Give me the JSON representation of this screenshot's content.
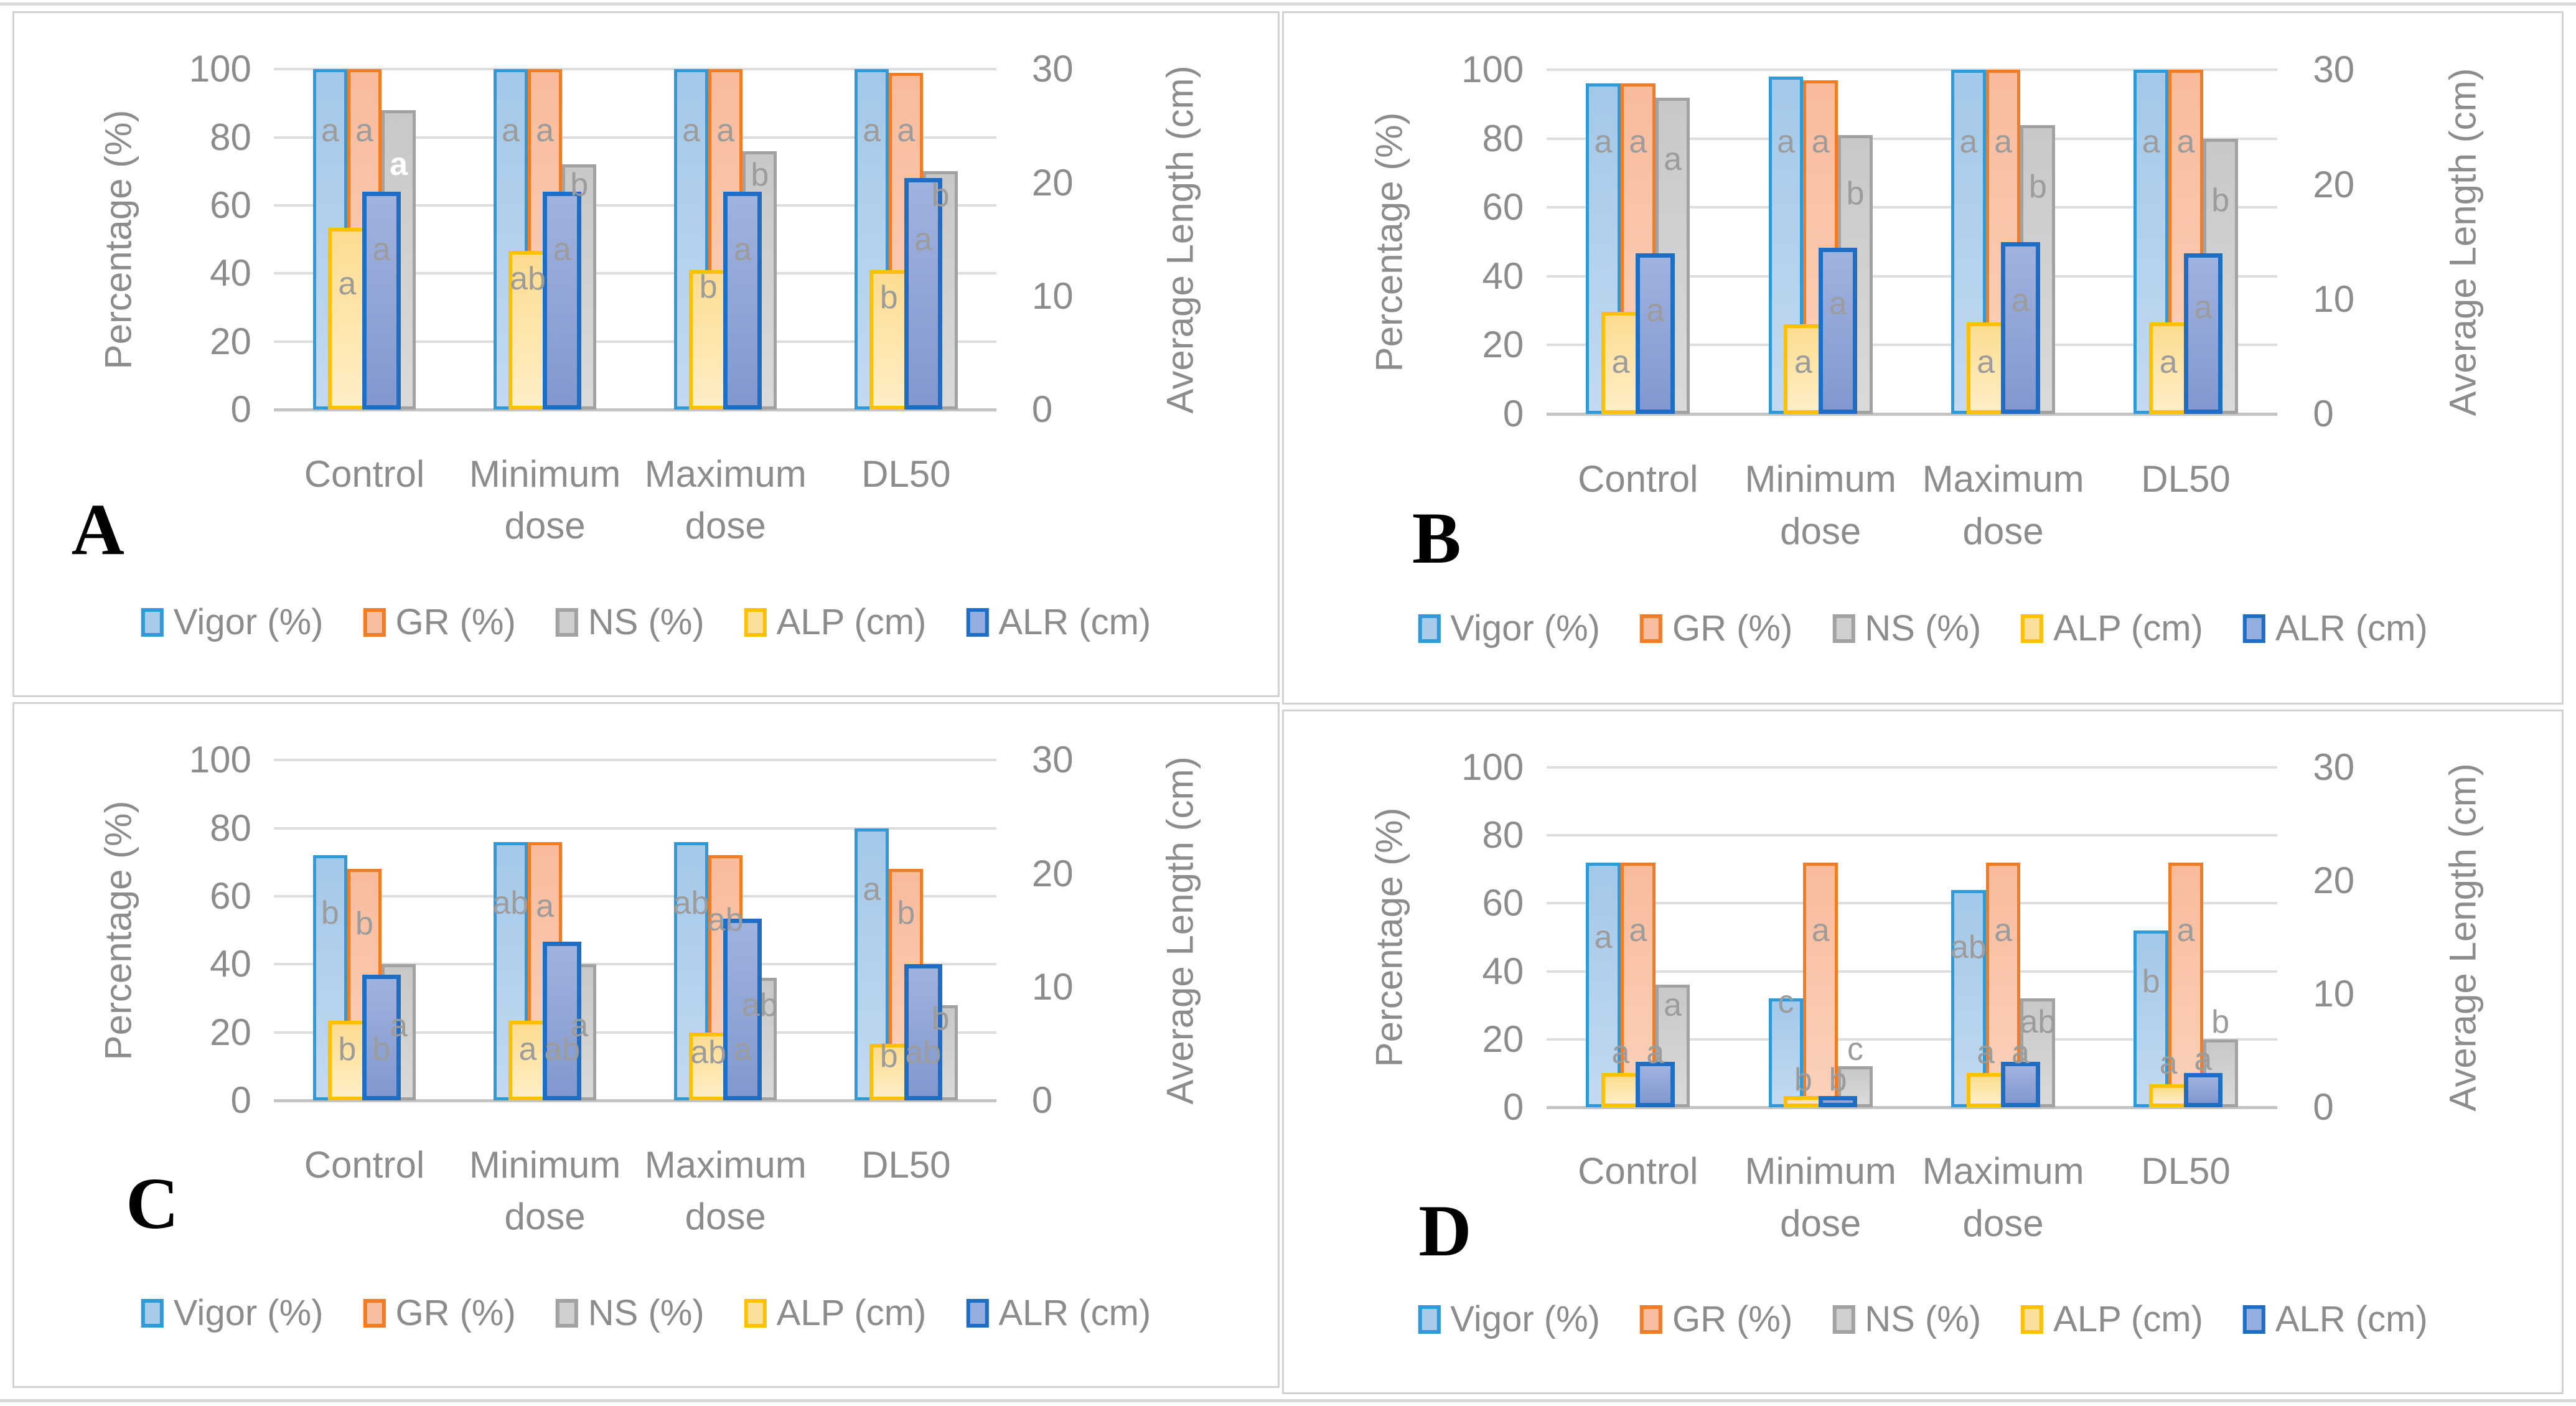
{
  "figure": {
    "panel_letters": [
      "A",
      "B",
      "C",
      "D"
    ],
    "axis_left_title": "Percentage (%)",
    "axis_right_title": "Average Length (cm)",
    "left_ticks": [
      0,
      20,
      40,
      60,
      80,
      100
    ],
    "right_ticks": [
      0,
      10,
      20,
      30
    ],
    "categories_lines": [
      [
        "Control"
      ],
      [
        "Minimum",
        "dose"
      ],
      [
        "Maximum",
        "dose"
      ],
      [
        "DL50"
      ]
    ],
    "legend": [
      "Vigor (%)",
      "GR (%)",
      "NS (%)",
      "ALP (cm)",
      "ALR (cm)"
    ],
    "colors": {
      "vigor_fill": "#a3c8e9",
      "vigor_border": "#2e9bd8",
      "gr_fill": "#f8bb9c",
      "gr_border": "#f07d26",
      "ns_fill": "#c8c8c8",
      "ns_border": "#a2a2a2",
      "alp_fill": "#fddc90",
      "alp_border": "#ffc000",
      "alr_fill": "#9fb1de",
      "alr_border": "#1f6ec5",
      "text_gray": "#8c8c8c",
      "letter_gray": "#9c9c9c",
      "gridline": "#dedede"
    }
  },
  "chart_data": [
    {
      "panel": "A",
      "type": "bar",
      "categories": [
        "Control",
        "Minimum dose",
        "Maximum dose",
        "DL50"
      ],
      "left_axis": "Percentage (%)",
      "right_axis": "Average Length (cm)",
      "ylim_left": [
        0,
        100
      ],
      "ylim_right": [
        0,
        30
      ],
      "series": [
        {
          "name": "Vigor (%)",
          "axis": "left",
          "key": "vigor",
          "values": [
            100,
            100,
            100,
            100
          ],
          "letters": [
            "a",
            "a",
            "a",
            "a"
          ],
          "letter_y": [
            82,
            82,
            82,
            82
          ]
        },
        {
          "name": "GR (%)",
          "axis": "left",
          "key": "gr",
          "values": [
            100,
            100,
            100,
            99
          ],
          "letters": [
            "a",
            "a",
            "a",
            "a"
          ],
          "letter_y": [
            82,
            82,
            82,
            82
          ]
        },
        {
          "name": "NS (%)",
          "axis": "left",
          "key": "ns",
          "values": [
            88,
            72,
            76,
            70
          ],
          "letters": [
            "a",
            "b",
            "b",
            "b"
          ],
          "letter_y": [
            72,
            66,
            69,
            63
          ],
          "letter_white": [
            true,
            false,
            false,
            false
          ]
        },
        {
          "name": "ALP (cm)",
          "axis": "right",
          "key": "alp",
          "values": [
            16,
            14,
            12.3,
            12.3
          ],
          "letters": [
            "a",
            "ab",
            "b",
            "b"
          ],
          "letter_y": [
            37,
            38.5,
            36,
            33
          ]
        },
        {
          "name": "ALR (cm)",
          "axis": "right",
          "key": "alr",
          "values": [
            19.2,
            19.2,
            19.2,
            20.4
          ],
          "letters": [
            "a",
            "a",
            "a",
            "a"
          ],
          "letter_y": [
            47,
            47,
            47,
            50
          ]
        }
      ]
    },
    {
      "panel": "B",
      "type": "bar",
      "categories": [
        "Control",
        "Minimum dose",
        "Maximum dose",
        "DL50"
      ],
      "left_axis": "Percentage (%)",
      "right_axis": "Average Length (cm)",
      "ylim_left": [
        0,
        100
      ],
      "ylim_right": [
        0,
        30
      ],
      "series": [
        {
          "name": "Vigor (%)",
          "axis": "left",
          "key": "vigor",
          "values": [
            96,
            98,
            100,
            100
          ],
          "letters": [
            "a",
            "a",
            "a",
            "a"
          ],
          "letter_y": [
            79,
            79,
            79,
            79
          ]
        },
        {
          "name": "GR (%)",
          "axis": "left",
          "key": "gr",
          "values": [
            96,
            97,
            100,
            100
          ],
          "letters": [
            "a",
            "a",
            "a",
            "a"
          ],
          "letter_y": [
            79,
            79,
            79,
            79
          ]
        },
        {
          "name": "NS (%)",
          "axis": "left",
          "key": "ns",
          "values": [
            92,
            81,
            84,
            80
          ],
          "letters": [
            "a",
            "b",
            "b",
            "b"
          ],
          "letter_y": [
            74,
            64,
            66,
            62
          ]
        },
        {
          "name": "ALP (cm)",
          "axis": "right",
          "key": "alp",
          "values": [
            8.9,
            7.8,
            8,
            8
          ],
          "letters": [
            "a",
            "a",
            "a",
            "a"
          ],
          "letter_y": [
            15,
            15,
            15,
            15
          ]
        },
        {
          "name": "ALR (cm)",
          "axis": "right",
          "key": "alr",
          "values": [
            14,
            14.5,
            15,
            14
          ],
          "letters": [
            "a",
            "a",
            "a",
            "a"
          ],
          "letter_y": [
            30,
            32,
            33,
            31
          ]
        }
      ]
    },
    {
      "panel": "C",
      "type": "bar",
      "categories": [
        "Control",
        "Minimum dose",
        "Maximum dose",
        "DL50"
      ],
      "left_axis": "Percentage (%)",
      "right_axis": "Average Length (cm)",
      "ylim_left": [
        0,
        100
      ],
      "ylim_right": [
        0,
        30
      ],
      "series": [
        {
          "name": "Vigor (%)",
          "axis": "left",
          "key": "vigor",
          "values": [
            72,
            76,
            76,
            80
          ],
          "letters": [
            "b",
            "ab",
            "ab",
            "a"
          ],
          "letter_y": [
            55,
            58,
            58,
            62
          ]
        },
        {
          "name": "GR (%)",
          "axis": "left",
          "key": "gr",
          "values": [
            68,
            76,
            72,
            68
          ],
          "letters": [
            "b",
            "a",
            "ab",
            "b"
          ],
          "letter_y": [
            52,
            57,
            53,
            55
          ]
        },
        {
          "name": "NS (%)",
          "axis": "left",
          "key": "ns",
          "values": [
            40,
            40,
            36,
            28
          ],
          "letters": [
            "a",
            "a",
            "ab",
            "b"
          ],
          "letter_y": [
            22,
            22,
            28,
            24
          ]
        },
        {
          "name": "ALP (cm)",
          "axis": "right",
          "key": "alp",
          "values": [
            7,
            7,
            6,
            5
          ],
          "letters": [
            "b",
            "a",
            "ab",
            "b"
          ],
          "letter_y": [
            15,
            15,
            14,
            13
          ]
        },
        {
          "name": "ALR (cm)",
          "axis": "right",
          "key": "alr",
          "values": [
            11.1,
            14,
            16,
            12
          ],
          "letters": [
            "b",
            "ab",
            "a",
            "ab"
          ],
          "letter_y": [
            15,
            15,
            15,
            14
          ]
        }
      ]
    },
    {
      "panel": "D",
      "type": "bar",
      "categories": [
        "Control",
        "Minimum dose",
        "Maximum dose",
        "DL50"
      ],
      "left_axis": "Percentage (%)",
      "right_axis": "Average Length (cm)",
      "ylim_left": [
        0,
        100
      ],
      "ylim_right": [
        0,
        30
      ],
      "series": [
        {
          "name": "Vigor (%)",
          "axis": "left",
          "key": "vigor",
          "values": [
            72,
            32,
            64,
            52
          ],
          "letters": [
            "a",
            "c",
            "ab",
            "b"
          ],
          "letter_y": [
            50,
            31,
            47,
            37
          ]
        },
        {
          "name": "GR (%)",
          "axis": "left",
          "key": "gr",
          "values": [
            72,
            72,
            72,
            72
          ],
          "letters": [
            "a",
            "a",
            "a",
            "a"
          ],
          "letter_y": [
            52,
            52,
            52,
            52
          ]
        },
        {
          "name": "NS (%)",
          "axis": "left",
          "key": "ns",
          "values": [
            36,
            12,
            32,
            20
          ],
          "letters": [
            "a",
            "c",
            "ab",
            "b"
          ],
          "letter_y": [
            30,
            17,
            25,
            25
          ]
        },
        {
          "name": "ALP (cm)",
          "axis": "right",
          "key": "alp",
          "values": [
            3,
            1,
            3,
            2
          ],
          "letters": [
            "a",
            "b",
            "a",
            "a"
          ],
          "letter_y": [
            16,
            8,
            16,
            13
          ]
        },
        {
          "name": "ALR (cm)",
          "axis": "right",
          "key": "alr",
          "values": [
            4,
            1,
            4,
            3
          ],
          "letters": [
            "a",
            "b",
            "a",
            "a"
          ],
          "letter_y": [
            16,
            8,
            16,
            14
          ]
        }
      ]
    }
  ]
}
